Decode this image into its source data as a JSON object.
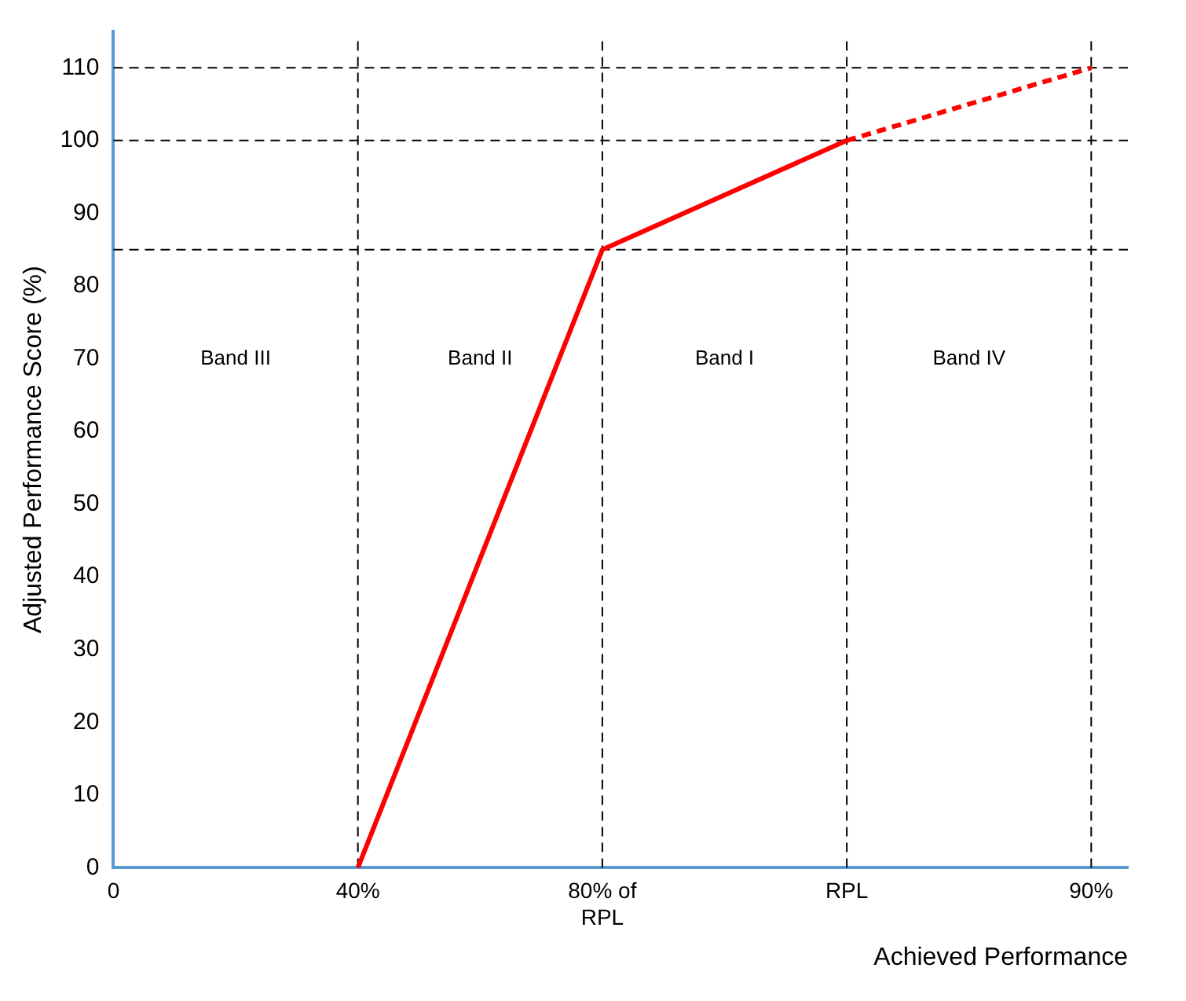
{
  "chart_data": {
    "type": "line",
    "xlabel": "Achieved Performance",
    "ylabel": "Adjusted Performance Score (%)",
    "categories": [
      "0",
      "40%",
      "80% of RPL",
      "RPL",
      "90%"
    ],
    "series": [
      {
        "color": "#ff0000",
        "values": [
          null,
          0,
          85,
          100,
          null
        ],
        "line_style": "solid"
      },
      {
        "color": "#ff0000",
        "values": [
          null,
          null,
          null,
          100,
          110
        ],
        "line_style": "dashed"
      }
    ],
    "ylim": [
      0,
      115
    ],
    "yticks": [
      0,
      10,
      20,
      30,
      40,
      50,
      60,
      70,
      80,
      90,
      100,
      110
    ],
    "ref_lines": [
      {
        "axis": "y",
        "value": 110,
        "color": "#000000",
        "line_style": "dashed"
      },
      {
        "axis": "y",
        "value": 100,
        "color": "#000000",
        "line_style": "dashed"
      },
      {
        "axis": "y",
        "value": 85,
        "color": "#000000",
        "line_style": "dashed"
      },
      {
        "axis": "x",
        "value": "40%",
        "color": "#000000",
        "line_style": "dashed"
      },
      {
        "axis": "x",
        "value": "80% of RPL",
        "color": "#000000",
        "line_style": "dashed"
      },
      {
        "axis": "x",
        "value": "RPL",
        "color": "#000000",
        "line_style": "dashed"
      },
      {
        "axis": "x",
        "value": "90%",
        "color": "#000000",
        "line_style": "dashed"
      }
    ],
    "annotations": [
      "Band III",
      "Band II",
      "Band I",
      "Band IV"
    ],
    "grid": false,
    "legend": false,
    "marker": "none"
  }
}
